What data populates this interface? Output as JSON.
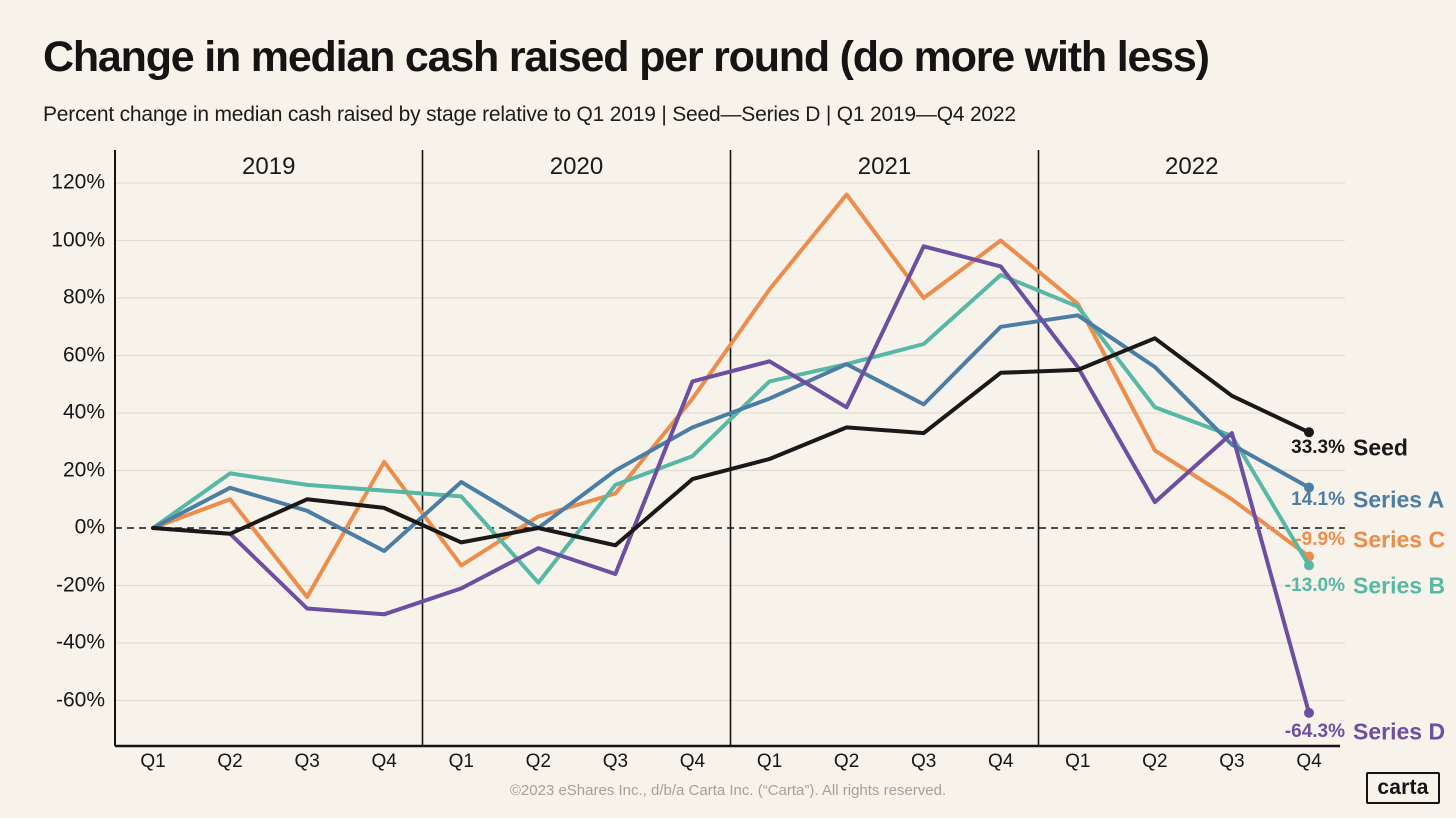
{
  "header": {
    "title": "Change in median cash raised per round (do more with less)",
    "subtitle": "Percent change in median cash raised by stage relative to Q1 2019 | Seed—Series D | Q1 2019—Q4 2022"
  },
  "footer": {
    "text": "©2023 eShares Inc., d/b/a Carta Inc. (“Carta”). All rights reserved.",
    "logo_text": "carta"
  },
  "colors": {
    "background": "#F7F3EB",
    "grid": "#E2DED6",
    "axis": "#141414",
    "zero_line": "#141414",
    "title_text": "#151413",
    "footer_text": "#A5A099"
  },
  "chart_data": {
    "type": "line",
    "title": "Change in median cash raised per round (do more with less)",
    "subtitle": "Percent change in median cash raised by stage relative to Q1 2019 | Seed—Series D | Q1 2019—Q4 2022",
    "grid": "horizontal",
    "legend_position": "right-edge-labels",
    "baseline_value": 0,
    "x_axis": {
      "quarter_labels": [
        "Q1",
        "Q2",
        "Q3",
        "Q4",
        "Q1",
        "Q2",
        "Q3",
        "Q4",
        "Q1",
        "Q2",
        "Q3",
        "Q4",
        "Q1",
        "Q2",
        "Q3",
        "Q4"
      ],
      "year_labels": [
        "2019",
        "2020",
        "2021",
        "2022"
      ]
    },
    "y_axis": {
      "unit": "%",
      "tick_labels": [
        "120%",
        "100%",
        "80%",
        "60%",
        "40%",
        "20%",
        "0%",
        "-20%",
        "-40%",
        "-60%"
      ],
      "tick_values": [
        120,
        100,
        80,
        60,
        40,
        20,
        0,
        -20,
        -40,
        -60
      ],
      "ylim": [
        -76,
        131
      ]
    },
    "series": [
      {
        "name": "Seed",
        "color": "#1A1917",
        "end_label": "33.3%",
        "values": [
          0,
          -2,
          10,
          7,
          -5,
          0,
          -6,
          17,
          24,
          35,
          33,
          54,
          55,
          66,
          46,
          33.3
        ]
      },
      {
        "name": "Series A",
        "color": "#4C7EA5",
        "end_label": "14.1%",
        "values": [
          0,
          14,
          6,
          -8,
          16,
          0,
          20,
          35,
          45,
          57,
          43,
          70,
          74,
          56,
          29,
          14.1
        ]
      },
      {
        "name": "Series B",
        "color": "#57B8A5",
        "end_label": "-13.0%",
        "values": [
          0,
          19,
          15,
          13,
          11,
          -19,
          15,
          25,
          51,
          57,
          64,
          88,
          77,
          42,
          32,
          -13.0
        ]
      },
      {
        "name": "Series C",
        "color": "#ED8D4B",
        "end_label": "-9.9%",
        "values": [
          0,
          10,
          -24,
          23,
          -13,
          4,
          12,
          45,
          83,
          116,
          80,
          100,
          78,
          27,
          10,
          -9.9
        ]
      },
      {
        "name": "Series D",
        "color": "#6C4FA1",
        "end_label": "-64.3%",
        "values": [
          0,
          -2,
          -28,
          -30,
          -21,
          -7,
          -16,
          51,
          58,
          42,
          98,
          91,
          56,
          9,
          33,
          -64.3
        ]
      }
    ]
  }
}
